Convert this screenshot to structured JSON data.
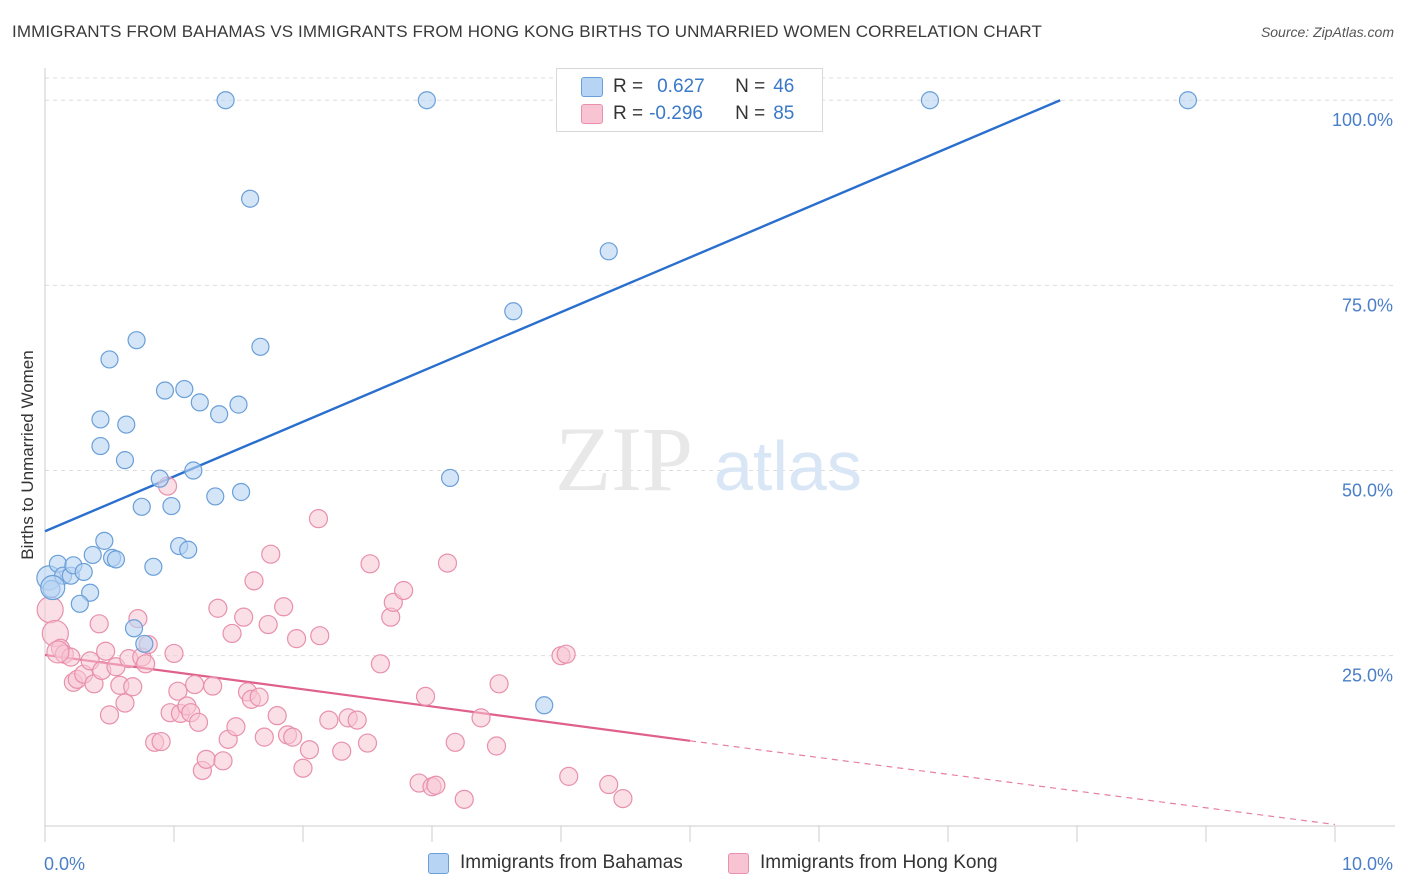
{
  "title": "IMMIGRANTS FROM BAHAMAS VS IMMIGRANTS FROM HONG KONG BIRTHS TO UNMARRIED WOMEN CORRELATION CHART",
  "source": "Source: ZipAtlas.com",
  "watermark": {
    "zip": "ZIP",
    "atlas": "atlas"
  },
  "legend": {
    "rows": [
      {
        "r_label": "R =",
        "r_value": "0.627",
        "n_label": "N =",
        "n_value": "46"
      },
      {
        "r_label": "R =",
        "r_value": "-0.296",
        "n_label": "N =",
        "n_value": "85"
      }
    ]
  },
  "bottom_legend": {
    "series1": "Immigrants from Bahamas",
    "series2": "Immigrants from Hong Kong"
  },
  "colors": {
    "bahamas_fill": "#b8d4f4",
    "bahamas_stroke": "#6a9fd8",
    "bahamas_line": "#2a6fce",
    "hongkong_fill": "#f8c4d4",
    "hongkong_stroke": "#e890ac",
    "hongkong_line": "#e0608c",
    "tick_text": "#4a7fc8",
    "grid": "#dddddd"
  },
  "chart_data": {
    "type": "scatter",
    "title": "IMMIGRANTS FROM BAHAMAS VS IMMIGRANTS FROM HONG KONG BIRTHS TO UNMARRIED WOMEN CORRELATION CHART",
    "xlabel": "",
    "ylabel": "Births to Unmarried Women",
    "xlim": [
      0,
      10
    ],
    "ylim": [
      2,
      103
    ],
    "x_tick_labels": [
      "0.0%",
      "10.0%"
    ],
    "y_ticks": [
      25,
      50,
      75,
      100
    ],
    "y_tick_labels": [
      "25.0%",
      "50.0%",
      "75.0%",
      "100.0%"
    ],
    "grid": true,
    "legend_position": "top-center",
    "series": [
      {
        "name": "Immigrants from Bahamas",
        "R": 0.627,
        "N": 46,
        "trend": {
          "x": [
            0,
            7.87
          ],
          "y": [
            41.8,
            100.0
          ]
        },
        "points": [
          [
            0.03,
            35.5
          ],
          [
            0.05,
            34.0
          ],
          [
            0.1,
            37.4
          ],
          [
            0.14,
            35.8
          ],
          [
            0.2,
            35.8
          ],
          [
            0.22,
            37.2
          ],
          [
            0.3,
            36.3
          ],
          [
            0.35,
            33.5
          ],
          [
            0.27,
            32.0
          ],
          [
            0.37,
            38.6
          ],
          [
            0.43,
            53.3
          ],
          [
            0.43,
            56.9
          ],
          [
            0.46,
            40.5
          ],
          [
            0.52,
            38.2
          ],
          [
            0.55,
            38.0
          ],
          [
            0.62,
            51.4
          ],
          [
            0.63,
            56.2
          ],
          [
            0.69,
            28.7
          ],
          [
            0.71,
            67.6
          ],
          [
            0.5,
            65.0
          ],
          [
            0.75,
            45.1
          ],
          [
            0.77,
            26.6
          ],
          [
            0.84,
            37.0
          ],
          [
            0.89,
            48.9
          ],
          [
            0.93,
            60.8
          ],
          [
            0.98,
            45.2
          ],
          [
            1.04,
            39.8
          ],
          [
            1.08,
            61.0
          ],
          [
            1.11,
            39.3
          ],
          [
            1.15,
            50.0
          ],
          [
            1.2,
            59.2
          ],
          [
            1.32,
            46.5
          ],
          [
            1.35,
            57.6
          ],
          [
            1.4,
            100.0
          ],
          [
            1.5,
            58.9
          ],
          [
            1.52,
            47.1
          ],
          [
            1.59,
            86.7
          ],
          [
            1.67,
            66.7
          ],
          [
            2.96,
            100.0
          ],
          [
            3.14,
            49.0
          ],
          [
            3.63,
            71.5
          ],
          [
            3.87,
            18.3
          ],
          [
            4.37,
            79.6
          ],
          [
            6.86,
            100.0
          ],
          [
            8.86,
            100.0
          ],
          [
            0.06,
            34.2
          ]
        ]
      },
      {
        "name": "Immigrants from Hong Kong",
        "R": -0.296,
        "N": 85,
        "trend": {
          "x": [
            0,
            5.0
          ],
          "y": [
            25.1,
            13.5
          ]
        },
        "trend_dashed": {
          "x": [
            5.0,
            10.0
          ],
          "y": [
            13.5,
            2.2
          ]
        },
        "points": [
          [
            0.04,
            31.2
          ],
          [
            0.08,
            28.0
          ],
          [
            0.12,
            26.0
          ],
          [
            0.15,
            25.2
          ],
          [
            0.2,
            24.8
          ],
          [
            0.22,
            21.4
          ],
          [
            0.25,
            21.8
          ],
          [
            0.3,
            22.5
          ],
          [
            0.35,
            24.3
          ],
          [
            0.38,
            21.2
          ],
          [
            0.42,
            29.3
          ],
          [
            0.44,
            23.0
          ],
          [
            0.47,
            25.6
          ],
          [
            0.5,
            17.0
          ],
          [
            0.55,
            23.5
          ],
          [
            0.58,
            21.0
          ],
          [
            0.62,
            18.6
          ],
          [
            0.65,
            24.6
          ],
          [
            0.68,
            20.8
          ],
          [
            0.72,
            30.0
          ],
          [
            0.75,
            24.8
          ],
          [
            0.78,
            23.9
          ],
          [
            0.8,
            26.5
          ],
          [
            0.85,
            13.3
          ],
          [
            0.9,
            13.4
          ],
          [
            0.95,
            47.9
          ],
          [
            0.97,
            17.3
          ],
          [
            1.0,
            25.3
          ],
          [
            1.03,
            20.2
          ],
          [
            1.05,
            17.2
          ],
          [
            1.1,
            18.2
          ],
          [
            1.13,
            17.3
          ],
          [
            1.16,
            21.1
          ],
          [
            1.19,
            16.0
          ],
          [
            1.22,
            9.5
          ],
          [
            1.25,
            11.0
          ],
          [
            1.3,
            20.9
          ],
          [
            1.34,
            31.4
          ],
          [
            1.38,
            10.8
          ],
          [
            1.42,
            13.7
          ],
          [
            1.45,
            28.0
          ],
          [
            1.48,
            15.4
          ],
          [
            1.54,
            30.2
          ],
          [
            1.57,
            20.1
          ],
          [
            1.6,
            19.1
          ],
          [
            1.62,
            35.1
          ],
          [
            1.66,
            19.4
          ],
          [
            1.7,
            14.0
          ],
          [
            1.73,
            29.2
          ],
          [
            1.75,
            38.7
          ],
          [
            1.8,
            16.9
          ],
          [
            1.85,
            31.6
          ],
          [
            1.88,
            14.3
          ],
          [
            1.92,
            14.0
          ],
          [
            1.95,
            27.3
          ],
          [
            2.0,
            9.8
          ],
          [
            2.05,
            12.3
          ],
          [
            2.12,
            43.5
          ],
          [
            2.13,
            27.7
          ],
          [
            2.2,
            16.3
          ],
          [
            2.3,
            12.1
          ],
          [
            2.35,
            16.6
          ],
          [
            2.42,
            16.3
          ],
          [
            2.5,
            13.2
          ],
          [
            2.52,
            37.4
          ],
          [
            2.6,
            23.9
          ],
          [
            2.68,
            30.2
          ],
          [
            2.7,
            32.2
          ],
          [
            2.78,
            33.8
          ],
          [
            2.9,
            7.8
          ],
          [
            2.95,
            19.5
          ],
          [
            3.0,
            7.3
          ],
          [
            3.03,
            7.5
          ],
          [
            3.12,
            37.5
          ],
          [
            3.18,
            13.3
          ],
          [
            3.25,
            5.6
          ],
          [
            3.38,
            16.6
          ],
          [
            3.5,
            12.8
          ],
          [
            3.52,
            21.2
          ],
          [
            4.0,
            25.0
          ],
          [
            4.04,
            25.2
          ],
          [
            4.06,
            8.7
          ],
          [
            4.37,
            7.6
          ],
          [
            4.48,
            5.7
          ],
          [
            0.1,
            25.5
          ]
        ]
      }
    ]
  }
}
